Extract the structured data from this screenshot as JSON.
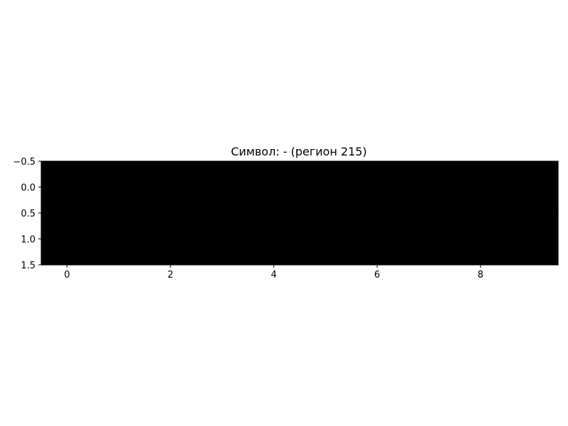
{
  "chart_data": {
    "type": "heatmap",
    "title": "Символ: - (регион 215)",
    "xlabel": "",
    "ylabel": "",
    "xlim": [
      -0.5,
      9.5
    ],
    "ylim": [
      1.5,
      -0.5
    ],
    "y_inverted": true,
    "rows": 2,
    "cols": 10,
    "values": [
      [
        0,
        0,
        0,
        0,
        0,
        0,
        0,
        0,
        0,
        0
      ],
      [
        0,
        0,
        0,
        0,
        0,
        0,
        0,
        0,
        0,
        0
      ]
    ],
    "colormap": "gray",
    "cell_color": "#000000",
    "x_ticks": [
      0,
      2,
      4,
      6,
      8
    ],
    "x_tick_labels": [
      "0",
      "2",
      "4",
      "6",
      "8"
    ],
    "y_ticks": [
      -0.5,
      0.0,
      0.5,
      1.0,
      1.5
    ],
    "y_tick_labels": [
      "−0.5",
      "0.0",
      "0.5",
      "1.0",
      "1.5"
    ],
    "grid": false,
    "legend": "none"
  }
}
